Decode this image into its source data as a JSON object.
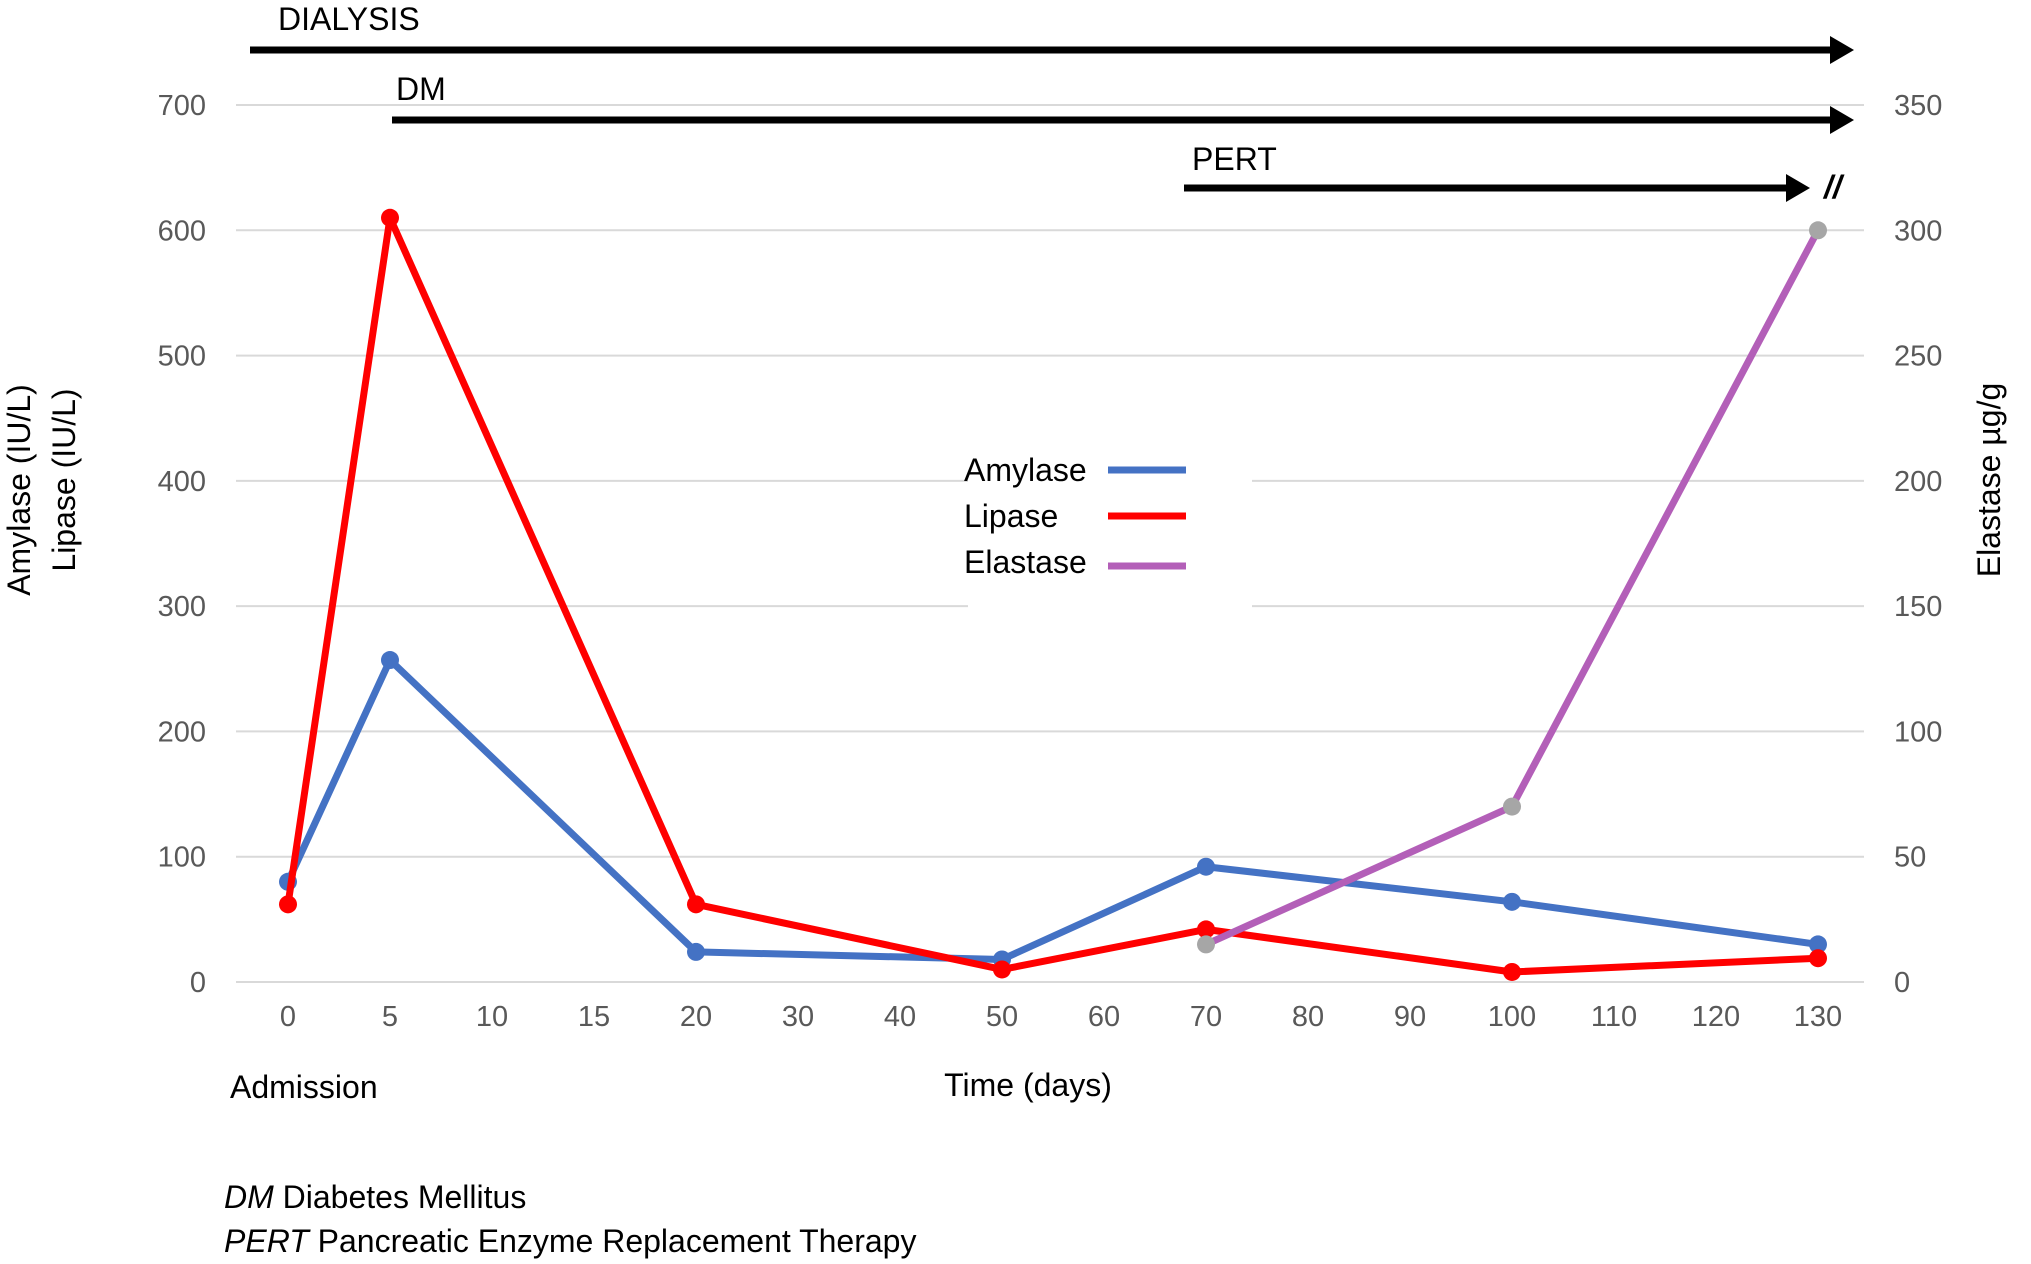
{
  "chart_data": {
    "type": "line",
    "x": [
      "0",
      "5",
      "10",
      "15",
      "20",
      "30",
      "40",
      "50",
      "60",
      "70",
      "80",
      "90",
      "100",
      "110",
      "120",
      "130"
    ],
    "x_note_label": "Admission",
    "xlabel": "Time (days)",
    "ylabel_left": [
      "Amylase (IU/L)",
      "Lipase (IU/L)"
    ],
    "ylabel_right": "Elastase µg/g",
    "ylim_left": [
      0,
      700
    ],
    "ylim_right": [
      0,
      350
    ],
    "yticks_left": [
      "0",
      "100",
      "200",
      "300",
      "400",
      "500",
      "600",
      "700"
    ],
    "yticks_right": [
      "0",
      "50",
      "100",
      "150",
      "200",
      "250",
      "300",
      "350"
    ],
    "grid": true,
    "legend_position": "center",
    "series": [
      {
        "name": "Amylase",
        "axis": "left",
        "color": "#4472C4",
        "points": [
          {
            "x": "0",
            "y": 80
          },
          {
            "x": "5",
            "y": 257
          },
          {
            "x": "20",
            "y": 24
          },
          {
            "x": "50",
            "y": 18
          },
          {
            "x": "70",
            "y": 92
          },
          {
            "x": "100",
            "y": 64
          },
          {
            "x": "130",
            "y": 30
          }
        ]
      },
      {
        "name": "Lipase",
        "axis": "left",
        "color": "#FF0000",
        "points": [
          {
            "x": "0",
            "y": 62
          },
          {
            "x": "5",
            "y": 610
          },
          {
            "x": "20",
            "y": 62
          },
          {
            "x": "50",
            "y": 10
          },
          {
            "x": "70",
            "y": 42
          },
          {
            "x": "100",
            "y": 8
          },
          {
            "x": "130",
            "y": 19
          }
        ]
      },
      {
        "name": "Elastase",
        "axis": "right",
        "color": "#B35FB8",
        "marker_color": "#A6A6A6",
        "points": [
          {
            "x": "70",
            "y": 15
          },
          {
            "x": "100",
            "y": 70
          },
          {
            "x": "130",
            "y": 300
          }
        ]
      }
    ],
    "annotations": [
      {
        "label": "DIALYSIS",
        "start_x": "0",
        "end_x": "130"
      },
      {
        "label": "DM",
        "start_x": "5",
        "end_x": "130"
      },
      {
        "label": "PERT",
        "start_x": "70",
        "end_x": "130",
        "break_mark": "//"
      }
    ],
    "footnotes": [
      {
        "abbr": "DM",
        "text": " Diabetes Mellitus"
      },
      {
        "abbr": "PERT",
        "text": " Pancreatic Enzyme Replacement Therapy"
      }
    ]
  }
}
